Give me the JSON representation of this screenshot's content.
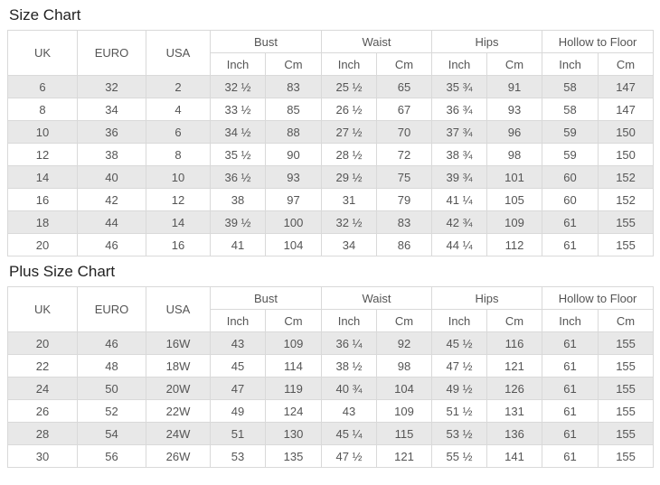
{
  "colors": {
    "stripe": "#e8e8e8",
    "border": "#d9d9d9",
    "cell_text": "#555555",
    "title_text": "#222222",
    "header_bg": "#ffffff",
    "page_bg": "#ffffff"
  },
  "tables": [
    {
      "title": "Size Chart",
      "columns": {
        "simple": [
          "UK",
          "EURO",
          "USA"
        ],
        "groups": [
          "Bust",
          "Waist",
          "Hips",
          "Hollow to Floor"
        ],
        "sub": [
          "Inch",
          "Cm"
        ]
      },
      "rows": [
        [
          "6",
          "32",
          "2",
          "32 ½",
          "83",
          "25 ½",
          "65",
          "35 ¾",
          "91",
          "58",
          "147"
        ],
        [
          "8",
          "34",
          "4",
          "33 ½",
          "85",
          "26 ½",
          "67",
          "36 ¾",
          "93",
          "58",
          "147"
        ],
        [
          "10",
          "36",
          "6",
          "34 ½",
          "88",
          "27 ½",
          "70",
          "37 ¾",
          "96",
          "59",
          "150"
        ],
        [
          "12",
          "38",
          "8",
          "35 ½",
          "90",
          "28 ½",
          "72",
          "38 ¾",
          "98",
          "59",
          "150"
        ],
        [
          "14",
          "40",
          "10",
          "36 ½",
          "93",
          "29 ½",
          "75",
          "39 ¾",
          "101",
          "60",
          "152"
        ],
        [
          "16",
          "42",
          "12",
          "38",
          "97",
          "31",
          "79",
          "41 ¼",
          "105",
          "60",
          "152"
        ],
        [
          "18",
          "44",
          "14",
          "39 ½",
          "100",
          "32 ½",
          "83",
          "42 ¾",
          "109",
          "61",
          "155"
        ],
        [
          "20",
          "46",
          "16",
          "41",
          "104",
          "34",
          "86",
          "44 ¼",
          "112",
          "61",
          "155"
        ]
      ]
    },
    {
      "title": "Plus Size Chart",
      "columns": {
        "simple": [
          "UK",
          "EURO",
          "USA"
        ],
        "groups": [
          "Bust",
          "Waist",
          "Hips",
          "Hollow to Floor"
        ],
        "sub": [
          "Inch",
          "Cm"
        ]
      },
      "rows": [
        [
          "20",
          "46",
          "16W",
          "43",
          "109",
          "36 ¼",
          "92",
          "45 ½",
          "116",
          "61",
          "155"
        ],
        [
          "22",
          "48",
          "18W",
          "45",
          "114",
          "38 ½",
          "98",
          "47 ½",
          "121",
          "61",
          "155"
        ],
        [
          "24",
          "50",
          "20W",
          "47",
          "119",
          "40 ¾",
          "104",
          "49 ½",
          "126",
          "61",
          "155"
        ],
        [
          "26",
          "52",
          "22W",
          "49",
          "124",
          "43",
          "109",
          "51 ½",
          "131",
          "61",
          "155"
        ],
        [
          "28",
          "54",
          "24W",
          "51",
          "130",
          "45 ¼",
          "115",
          "53 ½",
          "136",
          "61",
          "155"
        ],
        [
          "30",
          "56",
          "26W",
          "53",
          "135",
          "47 ½",
          "121",
          "55 ½",
          "141",
          "61",
          "155"
        ]
      ]
    }
  ]
}
